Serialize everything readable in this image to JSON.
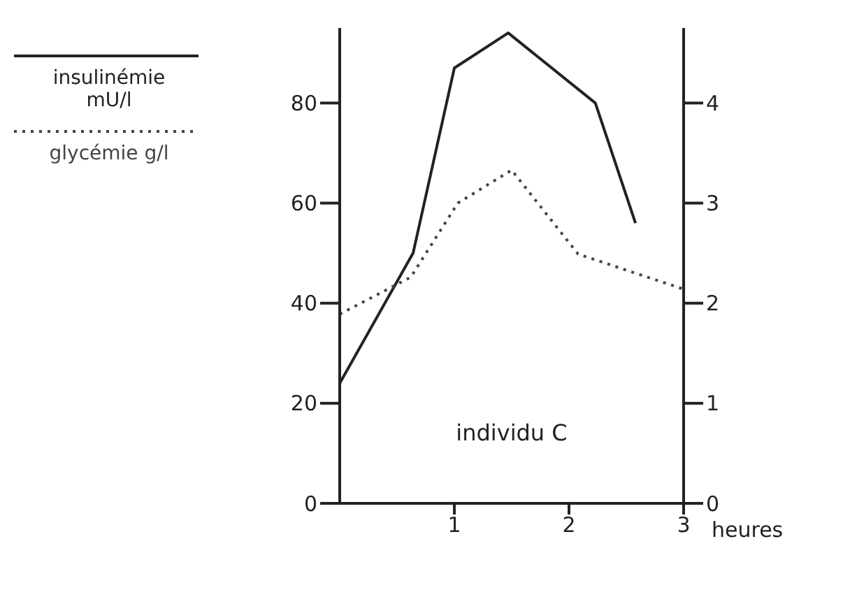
{
  "chart_data": {
    "type": "line",
    "xlabel": "heures",
    "xlim": [
      0,
      3
    ],
    "xticks": [
      1,
      2,
      3
    ],
    "ylim": [
      0,
      95
    ],
    "yticks": [
      0,
      20,
      40,
      60,
      80
    ],
    "y2lim": [
      0,
      4.75
    ],
    "y2ticks": [
      0,
      1,
      2,
      3,
      4
    ],
    "legend": "left",
    "marker": "none",
    "annotations": [
      "individu C"
    ],
    "series": [
      {
        "name": "insulinémie mU/l",
        "color": "#222222",
        "line_style": "solid",
        "x": [
          0,
          0.64,
          1.0,
          1.47,
          2.23,
          2.58
        ],
        "values": [
          24,
          50,
          87,
          94,
          80,
          56
        ]
      },
      {
        "name": "glycémie g/l",
        "color": "#444444",
        "line_style": "dotted",
        "axis": "y2",
        "x": [
          0,
          0.62,
          1.03,
          1.5,
          2.08,
          3.0
        ],
        "values": [
          1.89,
          2.26,
          3.0,
          3.33,
          2.49,
          2.14
        ]
      }
    ]
  }
}
